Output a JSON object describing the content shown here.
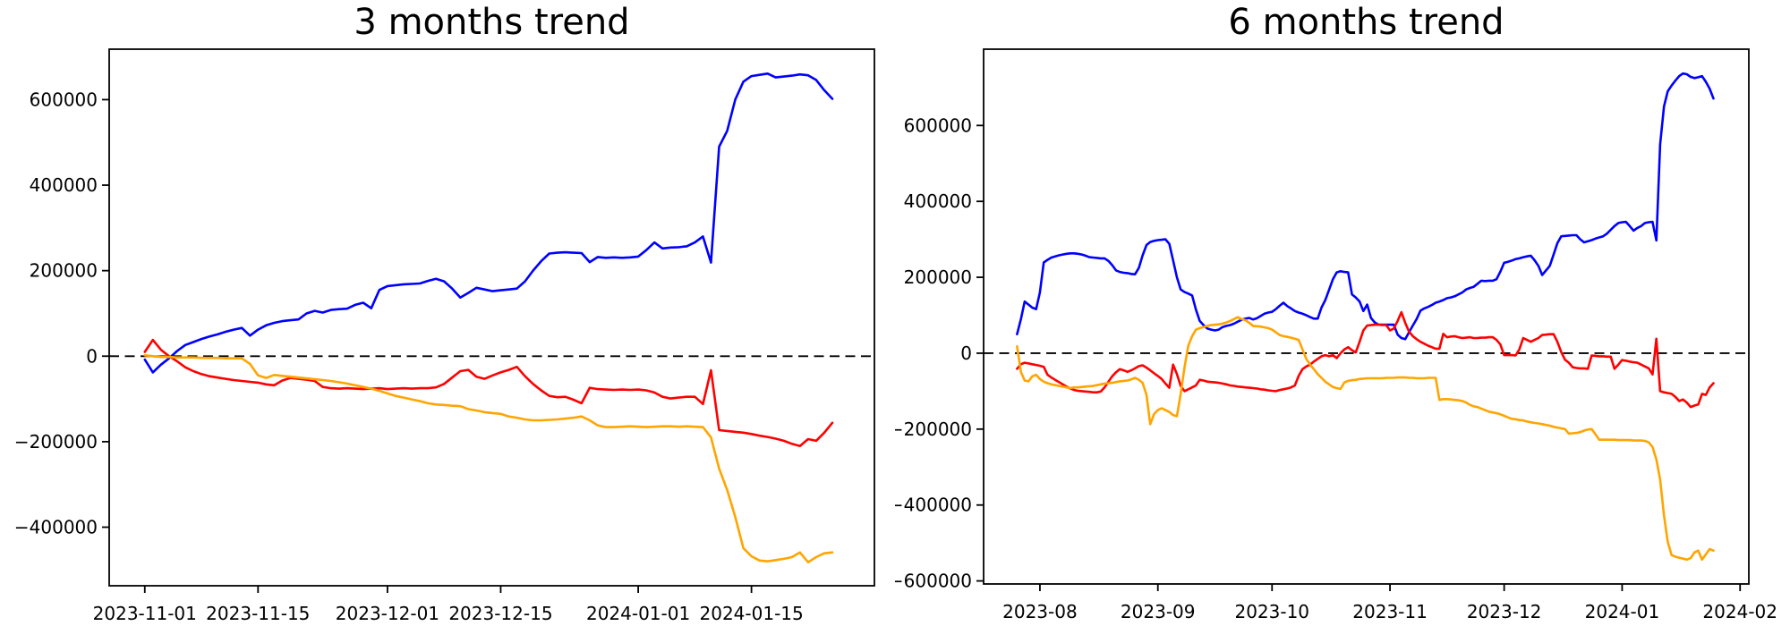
{
  "page": {
    "background": "#ffffff"
  },
  "colors": {
    "blue_series": "#0000ff",
    "red_series": "#ff0000",
    "orange_series": "#ffa500",
    "axis": "#000000",
    "zero_line": "#000000",
    "text": "#000000"
  },
  "chart_data": [
    {
      "type": "line",
      "title": "3 months trend",
      "values_scale": 1000,
      "x_axis": {
        "unit": "days since start_date",
        "start_date": "2023-11-01",
        "xlim_days": [
          -4.4,
          90.2
        ],
        "ticks": [
          {
            "day": 0,
            "label": "2023-11-01"
          },
          {
            "day": 14,
            "label": "2023-11-15"
          },
          {
            "day": 30,
            "label": "2023-12-01"
          },
          {
            "day": 44,
            "label": "2023-12-15"
          },
          {
            "day": 61,
            "label": "2024-01-01"
          },
          {
            "day": 75,
            "label": "2024-01-15"
          }
        ]
      },
      "y_axis": {
        "ylim": [
          -537000,
          718000
        ],
        "ticks": [
          {
            "value": 600000,
            "label": "600000"
          },
          {
            "value": 400000,
            "label": "400000"
          },
          {
            "value": 200000,
            "label": "200000"
          },
          {
            "value": 0,
            "label": "0"
          },
          {
            "value": -200000,
            "label": "−200000"
          },
          {
            "value": -400000,
            "label": "−400000"
          }
        ]
      },
      "reference_line": {
        "value": 0,
        "style": "dashed",
        "color": "#000000"
      },
      "legend": "none",
      "grid": false,
      "series": [
        {
          "name": "blue",
          "color": "#0000ff",
          "start_day": 0,
          "daily_values_k": [
            -8,
            -38,
            -20,
            -5,
            12,
            26,
            33,
            40,
            46,
            51,
            57,
            62,
            66,
            48,
            62,
            72,
            78,
            82,
            84,
            86,
            100,
            106,
            102,
            108,
            110,
            111,
            120,
            125,
            112,
            155,
            164,
            166,
            168,
            169,
            170,
            176,
            181,
            175,
            158,
            137,
            148,
            160,
            156,
            152,
            154,
            156,
            158,
            175,
            200,
            222,
            240,
            242,
            243,
            242,
            241,
            220,
            232,
            230,
            231,
            230,
            231,
            233,
            248,
            266,
            252,
            254,
            255,
            257,
            266,
            280,
            219,
            490,
            527,
            600,
            642,
            655,
            658,
            661,
            652,
            654,
            656,
            659,
            657,
            646,
            622,
            602
          ]
        },
        {
          "name": "red",
          "color": "#ff0000",
          "start_day": 0,
          "daily_values_k": [
            10,
            38,
            15,
            0,
            -12,
            -26,
            -35,
            -42,
            -47,
            -50,
            -53,
            -56,
            -58,
            -60,
            -62,
            -66,
            -68,
            -57,
            -51,
            -53,
            -55,
            -58,
            -72,
            -75,
            -76,
            -75,
            -76,
            -77,
            -76,
            -75,
            -77,
            -76,
            -75,
            -76,
            -75,
            -75,
            -73,
            -65,
            -50,
            -35,
            -32,
            -48,
            -53,
            -45,
            -38,
            -32,
            -25,
            -47,
            -65,
            -80,
            -93,
            -96,
            -95,
            -102,
            -110,
            -74,
            -77,
            -78,
            -79,
            -78,
            -79,
            -78,
            -80,
            -85,
            -95,
            -99,
            -97,
            -95,
            -95,
            -112,
            -33,
            -173,
            -175,
            -177,
            -179,
            -182,
            -186,
            -189,
            -193,
            -198,
            -205,
            -210,
            -194,
            -198,
            -179,
            -156
          ]
        },
        {
          "name": "orange",
          "color": "#ffa500",
          "start_day": 0,
          "daily_values_k": [
            2,
            0,
            -2,
            -2,
            -3,
            -3,
            -3,
            -4,
            -4,
            -4,
            -5,
            -5,
            -5,
            -18,
            -45,
            -51,
            -44,
            -46,
            -48,
            -50,
            -52,
            -54,
            -56,
            -58,
            -61,
            -64,
            -68,
            -72,
            -76,
            -81,
            -87,
            -93,
            -97,
            -101,
            -105,
            -110,
            -113,
            -114,
            -116,
            -117,
            -124,
            -127,
            -131,
            -133,
            -135,
            -141,
            -144,
            -148,
            -150,
            -150,
            -149,
            -148,
            -146,
            -144,
            -141,
            -150,
            -162,
            -166,
            -166,
            -165,
            -164,
            -165,
            -166,
            -165,
            -164,
            -164,
            -165,
            -164,
            -165,
            -166,
            -190,
            -263,
            -313,
            -376,
            -449,
            -468,
            -478,
            -480,
            -477,
            -474,
            -470,
            -459,
            -482,
            -470,
            -461,
            -459
          ]
        }
      ]
    },
    {
      "type": "line",
      "title": "6 months trend",
      "values_scale": 1000,
      "x_axis": {
        "unit": "days since start_date",
        "start_date": "2023-07-26",
        "xlim_days": [
          -8.8,
          192.3
        ],
        "ticks": [
          {
            "day": 6,
            "label": "2023-08"
          },
          {
            "day": 37,
            "label": "2023-09"
          },
          {
            "day": 67,
            "label": "2023-10"
          },
          {
            "day": 98,
            "label": "2023-11"
          },
          {
            "day": 128,
            "label": "2023-12"
          },
          {
            "day": 159,
            "label": "2024-01"
          },
          {
            "day": 190,
            "label": "2024-02"
          }
        ]
      },
      "y_axis": {
        "ylim": [
          -608000,
          801000
        ],
        "ticks": [
          {
            "value": 600000,
            "label": "600000"
          },
          {
            "value": 400000,
            "label": "400000"
          },
          {
            "value": 200000,
            "label": "200000"
          },
          {
            "value": 0,
            "label": "0"
          },
          {
            "value": -200000,
            "label": "−200000"
          },
          {
            "value": -400000,
            "label": "−400000"
          },
          {
            "value": -600000,
            "label": "−600000"
          }
        ]
      },
      "reference_line": {
        "value": 0,
        "style": "dashed",
        "color": "#000000"
      },
      "legend": "none",
      "grid": false,
      "series": [
        {
          "name": "blue",
          "color": "#0000ff",
          "start_day": 0,
          "daily_values_k": [
            50,
            90,
            136,
            128,
            120,
            116,
            160,
            239,
            246,
            252,
            255,
            258,
            260,
            262,
            263,
            263,
            262,
            260,
            257,
            253,
            252,
            251,
            250,
            250,
            243,
            232,
            218,
            214,
            212,
            211,
            209,
            208,
            225,
            258,
            285,
            293,
            296,
            298,
            299,
            300,
            288,
            245,
            200,
            168,
            161,
            157,
            152,
            115,
            85,
            74,
            65,
            62,
            60,
            62,
            69,
            72,
            74,
            78,
            83,
            88,
            91,
            93,
            89,
            92,
            98,
            104,
            107,
            109,
            116,
            125,
            133,
            124,
            118,
            111,
            107,
            104,
            100,
            95,
            91,
            91,
            120,
            140,
            167,
            195,
            213,
            216,
            214,
            213,
            155,
            147,
            136,
            111,
            128,
            93,
            81,
            75,
            75,
            75,
            75,
            75,
            49,
            40,
            37,
            55,
            73,
            90,
            112,
            118,
            122,
            127,
            133,
            136,
            140,
            145,
            147,
            150,
            155,
            160,
            168,
            172,
            175,
            183,
            191,
            190,
            191,
            191,
            195,
            215,
            238,
            241,
            244,
            248,
            250,
            253,
            255,
            257,
            245,
            230,
            206,
            218,
            230,
            260,
            290,
            308,
            309,
            310,
            311,
            311,
            300,
            292,
            295,
            298,
            302,
            305,
            308,
            315,
            325,
            335,
            343,
            345,
            346,
            335,
            323,
            330,
            335,
            343,
            345,
            346,
            297,
            550,
            650,
            690,
            705,
            718,
            730,
            737,
            735,
            728,
            725,
            727,
            730,
            715,
            697,
            671
          ]
        },
        {
          "name": "red",
          "color": "#ff0000",
          "start_day": 0,
          "daily_values_k": [
            -41,
            -29,
            -25,
            -27,
            -29,
            -31,
            -33,
            -36,
            -57,
            -64,
            -70,
            -76,
            -82,
            -88,
            -93,
            -97,
            -99,
            -100,
            -101,
            -102,
            -103,
            -103,
            -101,
            -90,
            -75,
            -61,
            -50,
            -42,
            -45,
            -49,
            -45,
            -40,
            -34,
            -32,
            -38,
            -45,
            -53,
            -60,
            -68,
            -80,
            -91,
            -30,
            -55,
            -86,
            -100,
            -95,
            -90,
            -85,
            -70,
            -72,
            -75,
            -76,
            -77,
            -78,
            -80,
            -82,
            -85,
            -86,
            -88,
            -89,
            -90,
            -91,
            -92,
            -93,
            -95,
            -96,
            -98,
            -99,
            -100,
            -97,
            -95,
            -93,
            -90,
            -85,
            -60,
            -42,
            -35,
            -30,
            -22,
            -15,
            -8,
            -5,
            -8,
            -5,
            -13,
            0,
            10,
            16,
            8,
            2,
            30,
            60,
            73,
            74,
            75,
            75,
            74,
            74,
            60,
            65,
            85,
            108,
            80,
            57,
            45,
            37,
            30,
            25,
            20,
            16,
            12,
            12,
            51,
            42,
            44,
            45,
            42,
            40,
            41,
            42,
            40,
            40,
            41,
            41,
            42,
            42,
            35,
            23,
            -5,
            -5,
            -5,
            -6,
            10,
            40,
            35,
            30,
            35,
            40,
            48,
            49,
            50,
            50,
            30,
            3,
            -17,
            -25,
            -37,
            -39,
            -40,
            -40,
            -41,
            -6,
            -7,
            -8,
            -8,
            -9,
            -9,
            -41,
            -30,
            -18,
            -20,
            -22,
            -24,
            -25,
            -30,
            -35,
            -40,
            -56,
            38,
            -100,
            -103,
            -105,
            -107,
            -115,
            -126,
            -122,
            -130,
            -142,
            -138,
            -135,
            -107,
            -110,
            -90,
            -79
          ]
        },
        {
          "name": "orange",
          "color": "#ffa500",
          "start_day": 0,
          "daily_values_k": [
            18,
            -49,
            -72,
            -74,
            -61,
            -57,
            -68,
            -75,
            -79,
            -82,
            -84,
            -86,
            -88,
            -90,
            -92,
            -90,
            -90,
            -89,
            -88,
            -87,
            -86,
            -84,
            -82,
            -80,
            -79,
            -78,
            -76,
            -74,
            -73,
            -72,
            -69,
            -65,
            -70,
            -78,
            -110,
            -187,
            -160,
            -150,
            -145,
            -150,
            -155,
            -163,
            -166,
            -107,
            -37,
            20,
            45,
            62,
            66,
            69,
            72,
            74,
            75,
            76,
            78,
            81,
            85,
            90,
            95,
            90,
            87,
            80,
            72,
            71,
            70,
            68,
            66,
            62,
            55,
            48,
            45,
            43,
            41,
            38,
            35,
            10,
            -15,
            -30,
            -42,
            -55,
            -65,
            -75,
            -82,
            -89,
            -92,
            -94,
            -77,
            -73,
            -71,
            -70,
            -68,
            -67,
            -66,
            -66,
            -66,
            -66,
            -66,
            -65,
            -65,
            -65,
            -64,
            -64,
            -64,
            -65,
            -65,
            -66,
            -66,
            -66,
            -65,
            -65,
            -65,
            -123,
            -121,
            -121,
            -122,
            -123,
            -124,
            -126,
            -130,
            -136,
            -140,
            -142,
            -146,
            -150,
            -154,
            -156,
            -158,
            -161,
            -165,
            -169,
            -173,
            -174,
            -176,
            -177,
            -180,
            -182,
            -184,
            -185,
            -187,
            -189,
            -191,
            -194,
            -196,
            -198,
            -200,
            -212,
            -211,
            -210,
            -208,
            -204,
            -201,
            -200,
            -214,
            -228,
            -228,
            -228,
            -228,
            -228,
            -229,
            -229,
            -229,
            -229,
            -230,
            -230,
            -230,
            -231,
            -235,
            -247,
            -280,
            -333,
            -427,
            -497,
            -532,
            -536,
            -539,
            -541,
            -544,
            -540,
            -525,
            -520,
            -544,
            -530,
            -516,
            -520
          ]
        }
      ]
    }
  ]
}
